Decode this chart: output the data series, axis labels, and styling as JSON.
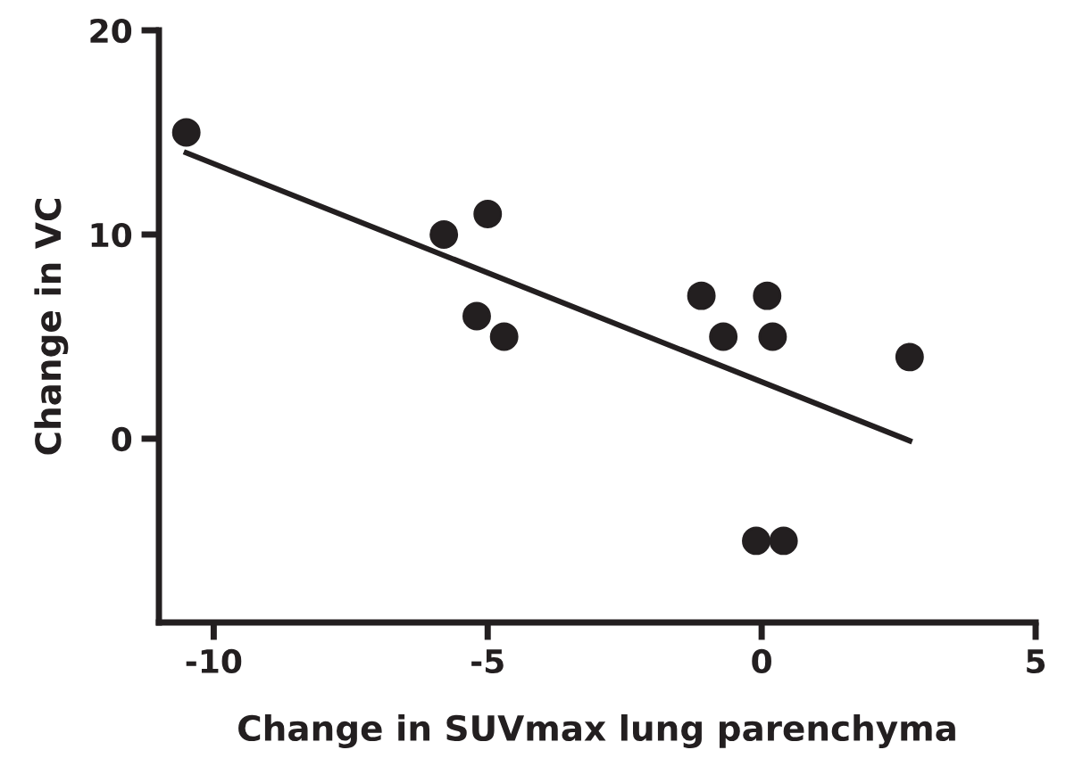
{
  "chart_data": {
    "type": "scatter",
    "xlabel": "Change in SUVmax lung parenchyma",
    "ylabel": "Change in VC",
    "series": [
      {
        "color": "#231f20",
        "marker": "circle",
        "x": [
          -10.5,
          -5.8,
          -5.0,
          -5.2,
          -4.7,
          -1.1,
          0.1,
          -0.7,
          0.2,
          2.7,
          -0.1,
          0.4
        ],
        "values": [
          15,
          10,
          11,
          6,
          5,
          7,
          7,
          5,
          5,
          4,
          -5,
          -5
        ]
      },
      {
        "type": "line",
        "color": "#231f20",
        "x": [
          -10.5,
          2.7
        ],
        "values": [
          14.0,
          -0.1
        ]
      }
    ],
    "xlim": [
      -11,
      5
    ],
    "ylim": [
      -9,
      20
    ],
    "xticks": [
      -10,
      -5,
      0,
      5
    ],
    "yticks": [
      0,
      10,
      20
    ],
    "grid": false,
    "line_style": "solid"
  }
}
